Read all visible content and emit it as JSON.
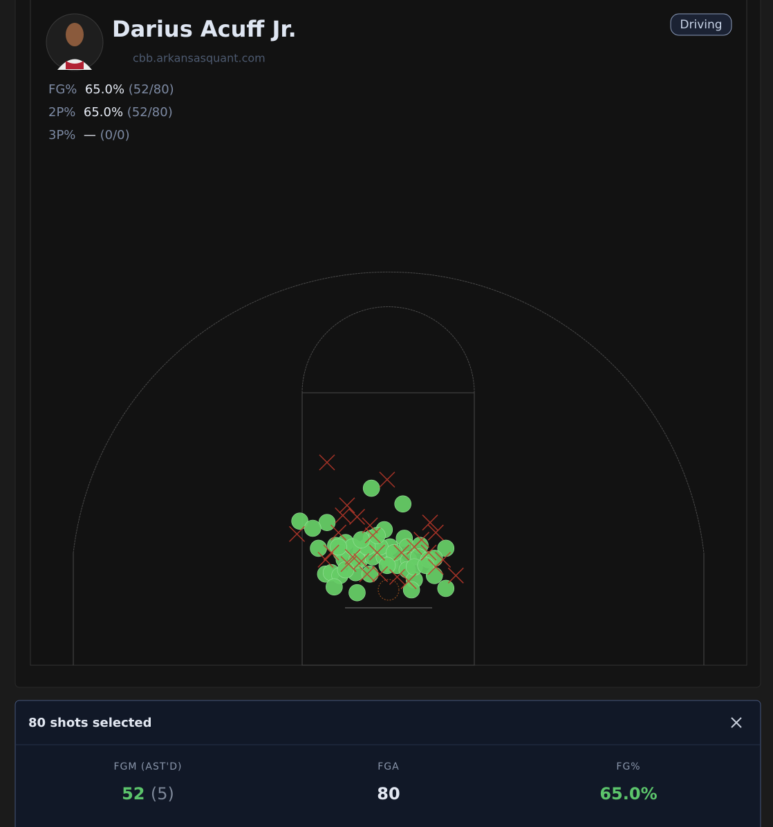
{
  "header": {
    "name": "Darius Acuff Jr.",
    "site": "cbb.arkansasquant.com",
    "filter": "Driving"
  },
  "stats": [
    {
      "label": "FG%",
      "value": "65.0%",
      "detail": "(52/80)"
    },
    {
      "label": "2P%",
      "value": "65.0%",
      "detail": "(52/80)"
    },
    {
      "label": "3P%",
      "value": "—",
      "detail": "(0/0)"
    }
  ],
  "shots": {
    "made_color": "#66cc66",
    "missed_color": "#c0392b",
    "made": {
      "x": [
        -1.2,
        1.0,
        -6.2,
        -4.3,
        -5.3,
        -0.3,
        -4.9,
        -3.7,
        -3.0,
        -3.3,
        -1.9,
        -1.2,
        -0.8,
        0.1,
        1.1,
        1.3,
        2.2,
        4.0,
        -3.1,
        -2.0,
        -1.1,
        -0.3,
        0.1,
        0.6,
        1.4,
        2.1,
        2.8,
        3.2,
        -4.4,
        -4.0,
        -3.4,
        -2.3,
        -1.3,
        -2.2,
        1.3,
        1.8,
        3.2,
        -3.8,
        1.6,
        4.0,
        -2.2,
        -0.6,
        -1.5,
        -2.5,
        0.4,
        1.8,
        -3.5,
        2.6,
        -0.1,
        -0.8,
        -1.9,
        -3.0
      ],
      "y": [
        7.1,
        6.0,
        4.8,
        4.7,
        4.3,
        4.2,
        2.9,
        3.1,
        3.3,
        2.6,
        2.8,
        3.6,
        3.0,
        3.0,
        3.6,
        3.0,
        3.1,
        2.9,
        2.1,
        2.1,
        2.3,
        2.3,
        1.8,
        1.7,
        2.1,
        2.3,
        2.1,
        2.2,
        1.1,
        1.2,
        1.0,
        1.2,
        1.1,
        2.1,
        1.4,
        0.7,
        1.0,
        0.2,
        0.0,
        0.1,
        -0.2,
        3.0,
        3.0,
        3.0,
        2.6,
        1.6,
        3.0,
        1.7,
        1.7,
        3.8,
        3.5,
        1.4
      ]
    },
    "missed": {
      "x": [
        -4.3,
        -0.1,
        -2.9,
        -2.2,
        2.9,
        -6.4,
        -3.2,
        -1.1,
        4.7,
        2.3,
        3.3,
        -1.9,
        -0.8,
        0.9,
        3.8,
        -2.8,
        -3.5,
        -1.5,
        0.6,
        1.8,
        -0.6,
        -4.4,
        -2.5,
        2.8,
        -1.3,
        1.4,
        -4.0,
        3.3
      ],
      "y": [
        8.9,
        7.7,
        5.9,
        5.1,
        4.7,
        3.9,
        5.2,
        3.8,
        1.0,
        3.5,
        4.0,
        2.0,
        2.6,
        2.6,
        2.1,
        1.8,
        4.0,
        1.1,
        0.9,
        3.0,
        1.1,
        2.1,
        2.3,
        2.6,
        4.5,
        0.6,
        2.6,
        1.6
      ]
    }
  },
  "panel": {
    "title": "80 shots selected",
    "stats": [
      {
        "label": "FGM (AST'D)",
        "value": "52",
        "sub": "(5)"
      },
      {
        "label": "FGA",
        "value": "80"
      },
      {
        "label": "FG%",
        "value": "65.0%"
      }
    ]
  }
}
